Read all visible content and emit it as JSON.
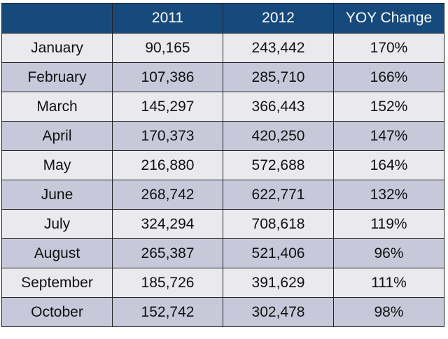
{
  "chart_data": {
    "type": "table",
    "columns": [
      "",
      "2011",
      "2012",
      "YOY Change"
    ],
    "rows": [
      {
        "month": "January",
        "y2011": "90,165",
        "y2012": "243,442",
        "yoy": "170%"
      },
      {
        "month": "February",
        "y2011": "107,386",
        "y2012": "285,710",
        "yoy": "166%"
      },
      {
        "month": "March",
        "y2011": "145,297",
        "y2012": "366,443",
        "yoy": "152%"
      },
      {
        "month": "April",
        "y2011": "170,373",
        "y2012": "420,250",
        "yoy": "147%"
      },
      {
        "month": "May",
        "y2011": "216,880",
        "y2012": "572,688",
        "yoy": "164%"
      },
      {
        "month": "June",
        "y2011": "268,742",
        "y2012": "622,771",
        "yoy": "132%"
      },
      {
        "month": "July",
        "y2011": "324,294",
        "y2012": "708,618",
        "yoy": "119%"
      },
      {
        "month": "August",
        "y2011": "265,387",
        "y2012": "521,406",
        "yoy": "96%"
      },
      {
        "month": "September",
        "y2011": "185,726",
        "y2012": "391,629",
        "yoy": "111%"
      },
      {
        "month": "October",
        "y2011": "152,742",
        "y2012": "302,478",
        "yoy": "98%"
      }
    ],
    "colors": {
      "header_bg": "#174a7c",
      "header_text": "#ffffff",
      "row_light": "#e9e9ee",
      "row_dark": "#c7c8d9"
    }
  }
}
